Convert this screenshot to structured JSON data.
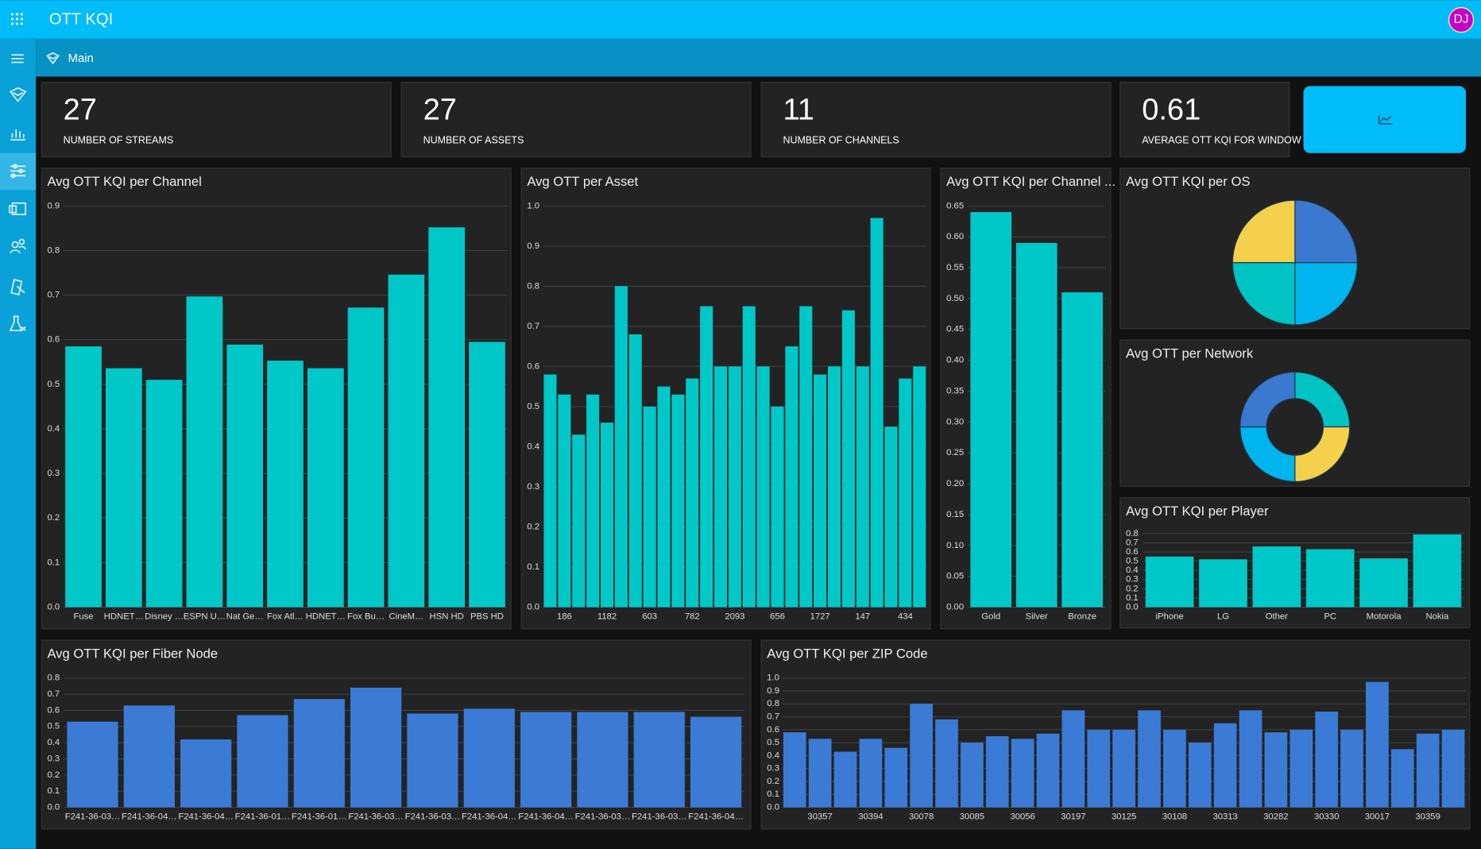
{
  "header": {
    "title": "OTT KQI",
    "avatar": "DJ"
  },
  "breadcrumb": "Main",
  "kpis": [
    {
      "value": 27,
      "label": "NUMBER OF STREAMS"
    },
    {
      "value": 27,
      "label": "NUMBER OF ASSETS"
    },
    {
      "value": 11,
      "label": "NUMBER OF CHANNELS"
    },
    {
      "value": 0.61,
      "label": "AVERAGE OTT KQI FOR WINDOW"
    }
  ],
  "chart_data": [
    {
      "type": "bar",
      "title": "Avg OTT KQI per Channel",
      "color": "#00c8c8",
      "categories": [
        "Fuse",
        "HDNET…",
        "Disney …",
        "ESPN U…",
        "Nat Ge…",
        "Fox Atl…",
        "HDNET…",
        "Fox Bu…",
        "CineM…",
        "HSN HD",
        "PBS HD"
      ],
      "values": [
        0.585,
        0.536,
        0.51,
        0.697,
        0.589,
        0.553,
        0.536,
        0.672,
        0.746,
        0.852,
        0.595
      ],
      "ylim": [
        0,
        0.9
      ],
      "yticks": [
        {
          "value": 0,
          "label": "0.0"
        },
        0.1,
        0.2,
        0.3,
        0.4,
        0.5,
        0.6,
        0.7,
        0.8,
        0.9
      ],
      "grid": true
    },
    {
      "type": "bar",
      "title": "Avg OTT per Asset",
      "color": "#00c8c8",
      "categories": [
        null,
        "186",
        null,
        null,
        "1182",
        null,
        null,
        "603",
        null,
        null,
        "782",
        null,
        null,
        "2093",
        null,
        null,
        "656",
        null,
        null,
        "1727",
        null,
        null,
        "147",
        null,
        null,
        "434",
        null
      ],
      "values": [
        0.58,
        0.53,
        0.43,
        0.53,
        0.46,
        0.8,
        0.68,
        0.5,
        0.55,
        0.53,
        0.57,
        0.75,
        0.6,
        0.6,
        0.75,
        0.6,
        0.5,
        0.65,
        0.75,
        0.58,
        0.6,
        0.74,
        0.6,
        0.97,
        0.45,
        0.57,
        0.6
      ],
      "ylim": [
        0,
        1
      ],
      "yticks": [
        {
          "value": 0,
          "label": "0.0"
        },
        0.1,
        0.2,
        0.3,
        0.4,
        0.5,
        0.6,
        0.7,
        0.8,
        0.9,
        {
          "value": 1,
          "label": "1.0"
        }
      ],
      "grid": true
    },
    {
      "type": "bar",
      "title": "Avg OTT KQI per Channel ...",
      "color": "#00c8c8",
      "categories": [
        "Gold",
        "Silver",
        "Bronze"
      ],
      "values": [
        0.64,
        0.59,
        0.51
      ],
      "ylim": [
        0,
        0.65
      ],
      "yticks": [
        {
          "value": 0,
          "label": "0.00"
        },
        0.05,
        {
          "value": 0.1,
          "label": "0.10"
        },
        0.15,
        {
          "value": 0.2,
          "label": "0.20"
        },
        0.25,
        {
          "value": 0.3,
          "label": "0.30"
        },
        0.35,
        {
          "value": 0.4,
          "label": "0.40"
        },
        0.45,
        {
          "value": 0.5,
          "label": "0.50"
        },
        0.55,
        {
          "value": 0.6,
          "label": "0.60"
        },
        0.65
      ],
      "grid": true
    },
    {
      "type": "pie",
      "title": "Avg OTT KQI per OS",
      "values": [
        25,
        25,
        25,
        25
      ],
      "colors": [
        "#3b78cf",
        "#00b4ee",
        "#00c4c4",
        "#f5d04a"
      ]
    },
    {
      "type": "donut",
      "title": "Avg OTT per Network",
      "values": [
        25,
        25,
        25,
        25
      ],
      "colors": [
        "#00c4c4",
        "#f5d04a",
        "#00b4ee",
        "#3b78cf"
      ]
    },
    {
      "type": "bar",
      "title": "Avg OTT KQI per Player",
      "color": "#00c8c8",
      "categories": [
        "iPhone",
        "LG",
        "Other",
        "PC",
        "Motorola",
        "Nokia"
      ],
      "values": [
        0.55,
        0.52,
        0.66,
        0.63,
        0.53,
        0.79
      ],
      "ylim": [
        0,
        0.8
      ],
      "yticks": [
        {
          "value": 0,
          "label": "0.0"
        },
        0.1,
        0.2,
        0.3,
        0.4,
        0.5,
        0.6,
        0.7,
        0.8
      ],
      "grid": true
    },
    {
      "type": "bar",
      "title": "Avg OTT KQI per Fiber Node",
      "color": "#3b7bd6",
      "categories": [
        "F241-36-03…",
        "F241-36-04…",
        "F241-36-04…",
        "F241-36-01…",
        "F241-36-01…",
        "F241-36-03…",
        "F241-36-03…",
        "F241-36-04…",
        "F241-36-04…",
        "F241-36-03…",
        "F241-36-03…",
        "F241-36-04…"
      ],
      "values": [
        0.53,
        0.63,
        0.42,
        0.57,
        0.67,
        0.74,
        0.58,
        0.61,
        0.59,
        0.59,
        0.59,
        0.56
      ],
      "ylim": [
        0,
        0.8
      ],
      "yticks": [
        {
          "value": 0,
          "label": "0.0"
        },
        0.1,
        0.2,
        0.3,
        0.4,
        0.5,
        0.6,
        0.7,
        0.8
      ],
      "grid": true
    },
    {
      "type": "bar",
      "title": "Avg OTT KQI per ZIP Code",
      "color": "#3b7bd6",
      "categories": [
        null,
        "30357",
        null,
        "30394",
        null,
        "30078",
        null,
        "30085",
        null,
        "30056",
        null,
        "30197",
        null,
        "30125",
        null,
        "30108",
        null,
        "30313",
        null,
        "30282",
        null,
        "30330",
        null,
        "30017",
        null,
        "30359",
        null
      ],
      "values": [
        0.58,
        0.53,
        0.43,
        0.53,
        0.46,
        0.8,
        0.68,
        0.5,
        0.55,
        0.53,
        0.57,
        0.75,
        0.6,
        0.6,
        0.75,
        0.6,
        0.5,
        0.65,
        0.75,
        0.58,
        0.6,
        0.74,
        0.6,
        0.97,
        0.45,
        0.57,
        0.6
      ],
      "ylim": [
        0,
        1
      ],
      "yticks": [
        {
          "value": 0,
          "label": "0.0"
        },
        0.1,
        0.2,
        0.3,
        0.4,
        0.5,
        0.6,
        0.7,
        0.8,
        0.9,
        {
          "value": 1,
          "label": "1.0"
        }
      ],
      "grid": true
    }
  ]
}
